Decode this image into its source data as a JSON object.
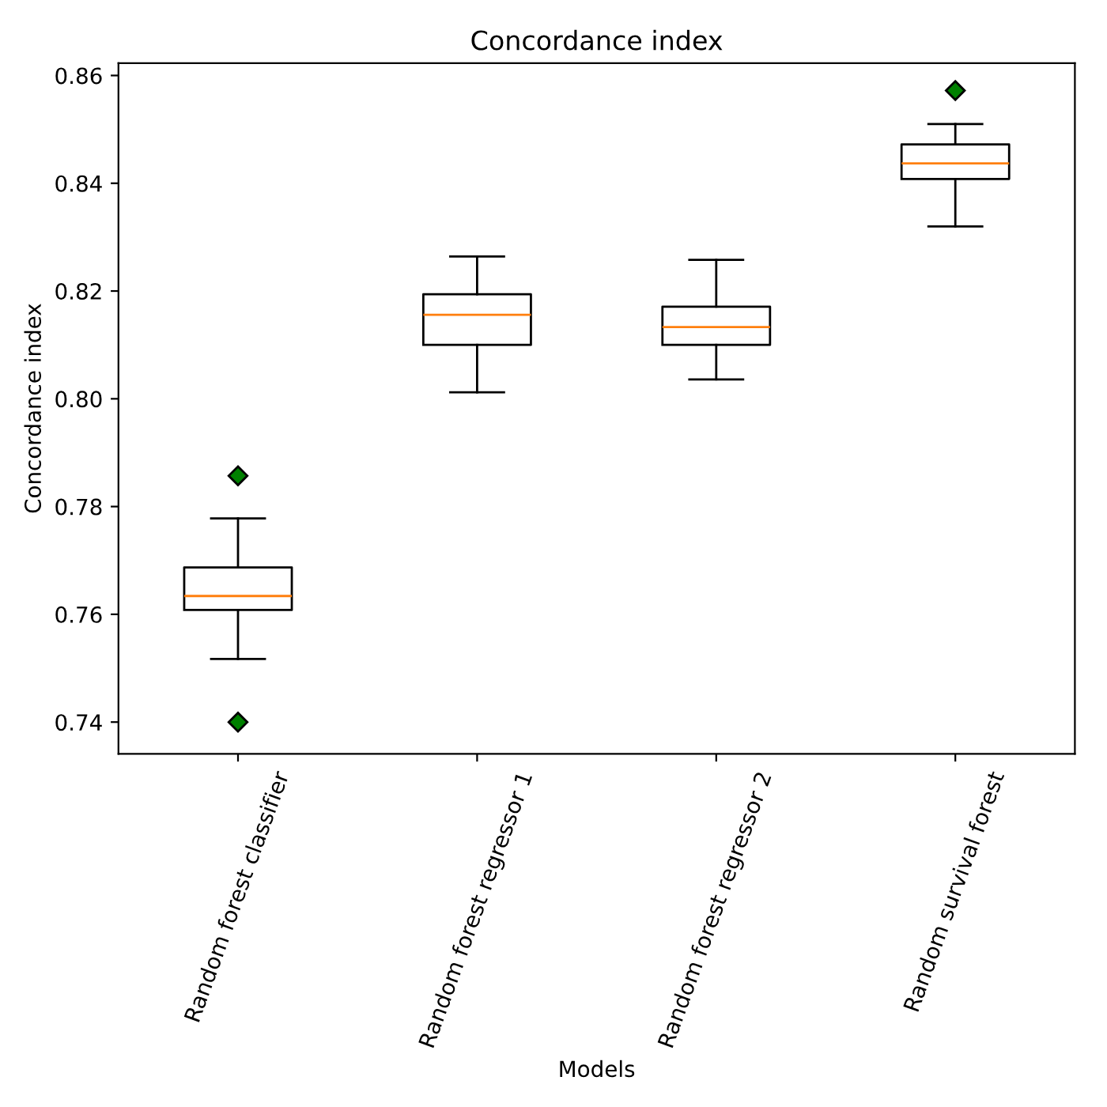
{
  "chart_data": {
    "type": "box",
    "title": "Concordance index",
    "xlabel": "Models",
    "ylabel": "Concordance index",
    "categories": [
      "Random forest classifier",
      "Random forest regressor 1",
      "Random forest regressor 2",
      "Random survival forest"
    ],
    "boxes": [
      {
        "low": 0.7517,
        "q1": 0.7608,
        "median": 0.7634,
        "q3": 0.7687,
        "high": 0.7778,
        "outliers": [
          0.7857,
          0.74
        ]
      },
      {
        "low": 0.8012,
        "q1": 0.81,
        "median": 0.8156,
        "q3": 0.8194,
        "high": 0.8264
      },
      {
        "low": 0.8036,
        "q1": 0.81,
        "median": 0.8133,
        "q3": 0.8171,
        "high": 0.8258
      },
      {
        "low": 0.832,
        "q1": 0.8408,
        "median": 0.8437,
        "q3": 0.8472,
        "high": 0.851,
        "outliers": [
          0.8572
        ]
      }
    ],
    "ylim": [
      0.7341,
      0.8623
    ],
    "yticks": [
      {
        "value": 0.74,
        "label": "0.74"
      },
      {
        "value": 0.76,
        "label": "0.76"
      },
      {
        "value": 0.78,
        "label": "0.78"
      },
      {
        "value": 0.8,
        "label": "0.80"
      },
      {
        "value": 0.82,
        "label": "0.82"
      },
      {
        "value": 0.84,
        "label": "0.84"
      },
      {
        "value": 0.86,
        "label": "0.86"
      }
    ],
    "marker": "diamond",
    "grid": false
  }
}
